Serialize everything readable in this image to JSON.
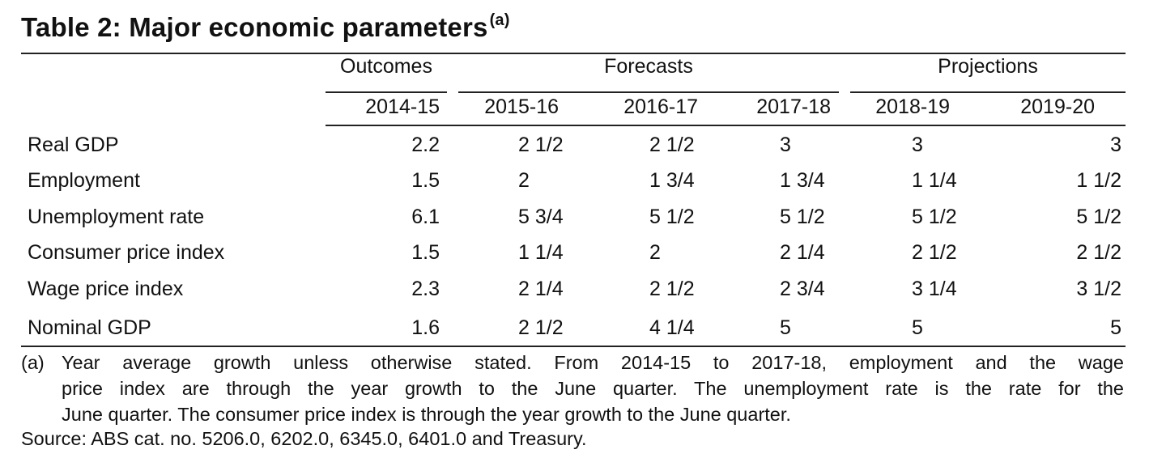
{
  "title": "Table 2: Major economic parameters",
  "title_note_mark": "(a)",
  "groups": [
    "Outcomes",
    "Forecasts",
    "Projections"
  ],
  "years": [
    "2014-15",
    "2015-16",
    "2016-17",
    "2017-18",
    "2018-19",
    "2019-20"
  ],
  "rows": [
    {
      "label": "Real GDP",
      "values": [
        "2.2",
        "2 1/2",
        "2 1/2",
        "3",
        "3",
        "3"
      ]
    },
    {
      "label": "Employment",
      "values": [
        "1.5",
        "2",
        "1 3/4",
        "1 3/4",
        "1 1/4",
        "1 1/2"
      ]
    },
    {
      "label": "Unemployment rate",
      "values": [
        "6.1",
        "5 3/4",
        "5 1/2",
        "5 1/2",
        "5 1/2",
        "5 1/2"
      ]
    },
    {
      "label": "Consumer price index",
      "values": [
        "1.5",
        "1 1/4",
        "2",
        "2 1/4",
        "2 1/2",
        "2 1/2"
      ]
    },
    {
      "label": "Wage price index",
      "values": [
        "2.3",
        "2 1/4",
        "2 1/2",
        "2 3/4",
        "3 1/4",
        "3 1/2"
      ]
    },
    {
      "label": "Nominal GDP",
      "values": [
        "1.6",
        "2 1/2",
        "4 1/4",
        "5",
        "5",
        "5"
      ]
    }
  ],
  "footnote": {
    "mark": "(a)",
    "line1": "Year average growth unless otherwise stated. From 2014-15 to 2017-18, employment and the wage",
    "line2": "price index are through the year growth to the June quarter. The unemployment rate is the rate for the",
    "line3": "June quarter. The consumer price index is through the year growth to the June quarter."
  },
  "source": "Source: ABS cat. no. 5206.0, 6202.0, 6345.0, 6401.0 and Treasury."
}
